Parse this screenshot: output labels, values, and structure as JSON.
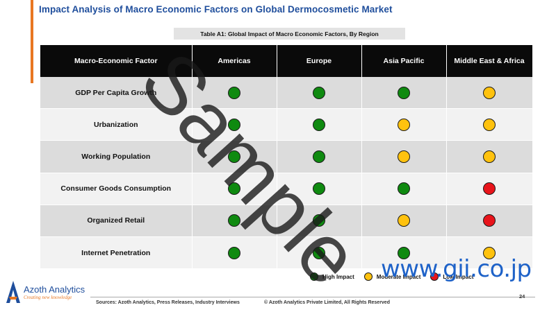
{
  "page": {
    "title": "Impact Analysis of Macro Economic Factors on Global Dermocosmetic Market",
    "table_caption": "Table A1: Global Impact of Macro Economic Factors, By Region",
    "page_number": "24"
  },
  "table": {
    "headers": [
      "Macro-Economic Factor",
      "Americas",
      "Europe",
      "Asia Pacific",
      "Middle East & Africa"
    ],
    "rows": [
      {
        "factor": "GDP Per Capita Growth",
        "impacts": [
          "high",
          "high",
          "high",
          "moderate"
        ]
      },
      {
        "factor": "Urbanization",
        "impacts": [
          "high",
          "high",
          "moderate",
          "moderate"
        ]
      },
      {
        "factor": "Working Population",
        "impacts": [
          "high",
          "high",
          "moderate",
          "moderate"
        ]
      },
      {
        "factor": "Consumer Goods Consumption",
        "impacts": [
          "high",
          "high",
          "high",
          "low"
        ]
      },
      {
        "factor": "Organized Retail",
        "impacts": [
          "high",
          "high",
          "moderate",
          "low"
        ]
      },
      {
        "factor": "Internet Penetration",
        "impacts": [
          "high",
          "high",
          "high",
          "moderate"
        ]
      }
    ]
  },
  "impact_levels": {
    "high": {
      "label": "High Impact",
      "color": "#0f8a10"
    },
    "moderate": {
      "label": "Moderate Impact",
      "color": "#ffc20e"
    },
    "low": {
      "label": "Low Impact",
      "color": "#e8141b"
    }
  },
  "watermarks": {
    "sample": "Sample",
    "site": "www.gii.co.jp"
  },
  "logo": {
    "name": "Azoth Analytics",
    "tagline": "Creating new knowledge"
  },
  "footer": {
    "sources": "Sources: Azoth Analytics, Press Releases, Industry Interviews",
    "copyright": "© Azoth Analytics Private Limited, All Rights Reserved"
  },
  "colors": {
    "title": "#1f4e9c",
    "accent": "#e87722",
    "header_bg": "#0a0a0a",
    "site_watermark": "#1e62c8"
  }
}
